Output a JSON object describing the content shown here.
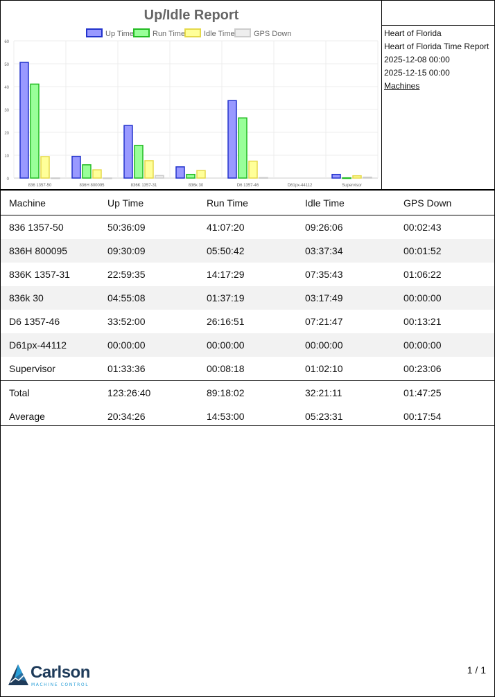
{
  "chart_data": {
    "type": "bar",
    "title": "Up/Idle Report",
    "categories": [
      "836 1357-50",
      "836H 800095",
      "836K 1357-31",
      "836k 30",
      "D6 1357-46",
      "D61px-44112",
      "Supervisor"
    ],
    "series": [
      {
        "name": "Up Time",
        "values": [
          50.6,
          9.5,
          23.0,
          4.9,
          33.9,
          0,
          1.6
        ],
        "color": "#9999ff",
        "border": "#2233cc"
      },
      {
        "name": "Run Time",
        "values": [
          41.1,
          5.8,
          14.3,
          1.6,
          26.3,
          0,
          0.1
        ],
        "color": "#99ff99",
        "border": "#22bb22"
      },
      {
        "name": "Idle Time",
        "values": [
          9.4,
          3.6,
          7.6,
          3.3,
          7.4,
          0,
          1.0
        ],
        "color": "#ffff99",
        "border": "#e5d94a"
      },
      {
        "name": "GPS Down",
        "values": [
          0.05,
          0.03,
          1.1,
          0.0,
          0.2,
          0,
          0.4
        ],
        "color": "#eeeeee",
        "border": "#cccccc"
      }
    ],
    "ylim": [
      0,
      60
    ],
    "yticks": [
      0,
      10,
      20,
      30,
      40,
      50,
      60
    ],
    "legend": "top",
    "grid": true
  },
  "info": {
    "company": "Heart of Florida",
    "report_name": "Heart of Florida Time Report",
    "start": "2025-12-08 00:00",
    "end": "2025-12-15 00:00",
    "group": "Machines"
  },
  "table": {
    "headers": [
      "Machine",
      "Up Time",
      "Run Time",
      "Idle Time",
      "GPS Down"
    ],
    "rows": [
      [
        "836 1357-50",
        "50:36:09",
        "41:07:20",
        "09:26:06",
        "00:02:43"
      ],
      [
        "836H 800095",
        "09:30:09",
        "05:50:42",
        "03:37:34",
        "00:01:52"
      ],
      [
        "836K 1357-31",
        "22:59:35",
        "14:17:29",
        "07:35:43",
        "01:06:22"
      ],
      [
        "836k 30",
        "04:55:08",
        "01:37:19",
        "03:17:49",
        "00:00:00"
      ],
      [
        "D6 1357-46",
        "33:52:00",
        "26:16:51",
        "07:21:47",
        "00:13:21"
      ],
      [
        "D61px-44112",
        "00:00:00",
        "00:00:00",
        "00:00:00",
        "00:00:00"
      ],
      [
        "Supervisor",
        "01:33:36",
        "00:08:18",
        "01:02:10",
        "00:23:06"
      ]
    ],
    "total": [
      "Total",
      "123:26:40",
      "89:18:02",
      "32:21:11",
      "01:47:25"
    ],
    "average": [
      "Average",
      "20:34:26",
      "14:53:00",
      "05:23:31",
      "00:17:54"
    ]
  },
  "footer": {
    "logo_text": "Carlson",
    "logo_sub": "MACHINE CONTROL",
    "logo_icon": "carlson-mountain-icon",
    "page": "1 / 1"
  }
}
